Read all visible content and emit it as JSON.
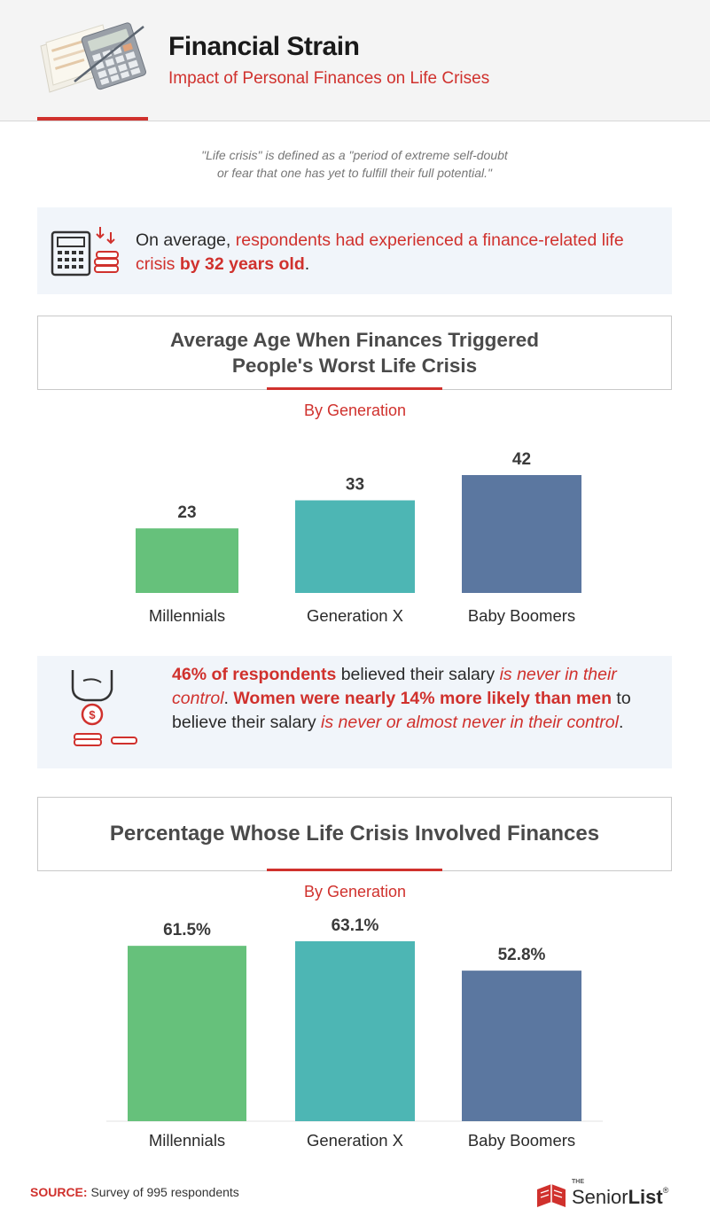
{
  "header": {
    "title": "Financial Strain",
    "subtitle": "Impact of Personal Finances on Life Crises"
  },
  "definition": {
    "line1": "\"Life crisis\" is defined as a \"period of extreme self-doubt",
    "line2": "or fear that one has yet to fulfill their full potential.\""
  },
  "callout1": {
    "icon": "calculator-coins-icon",
    "p1": "On average, ",
    "p2": "respondents had experienced a finance-related life crisis ",
    "p3": "by 32 years old",
    "p4": "."
  },
  "callout2": {
    "icon": "hand-coin-icon",
    "p1": "46% of respondents",
    "p2": " believed their salary ",
    "p3": "is never in their control",
    "p4": ". ",
    "p5": "Women were nearly 14% more likely than men",
    "p6": " to believe their salary ",
    "p7": "is never or almost never in their control",
    "p8": "."
  },
  "chart_data": [
    {
      "type": "bar",
      "title": "Average Age When Finances Triggered People's Worst Life Crisis",
      "title_line1": "Average Age When Finances Triggered",
      "title_line2": "People's Worst Life Crisis",
      "subtitle": "By Generation",
      "categories": [
        "Millennials",
        "Generation X",
        "Baby Boomers"
      ],
      "values": [
        23,
        33,
        42
      ],
      "value_labels": [
        "23",
        "33",
        "42"
      ],
      "colors": [
        "#66c17b",
        "#4db6b4",
        "#5b77a0"
      ],
      "ylim": [
        0,
        42
      ],
      "grid": false
    },
    {
      "type": "bar",
      "title": "Percentage Whose Life Crisis Involved Finances",
      "subtitle": "By Generation",
      "categories": [
        "Millennials",
        "Generation X",
        "Baby Boomers"
      ],
      "values": [
        61.5,
        63.1,
        52.8
      ],
      "value_labels": [
        "61.5%",
        "63.1%",
        "52.8%"
      ],
      "colors": [
        "#66c17b",
        "#4db6b4",
        "#5b77a0"
      ],
      "ylim": [
        0,
        63.1
      ],
      "grid": false
    }
  ],
  "footer": {
    "source_label": "SOURCE:",
    "source_text": " Survey of 995 respondents",
    "brand_the": "THE",
    "brand_senior": "Senior",
    "brand_list": "List",
    "brand_reg": "®"
  },
  "colors": {
    "accent": "#d0312d",
    "callout_bg": "#f1f5fa",
    "header_bg": "#f4f4f4"
  }
}
